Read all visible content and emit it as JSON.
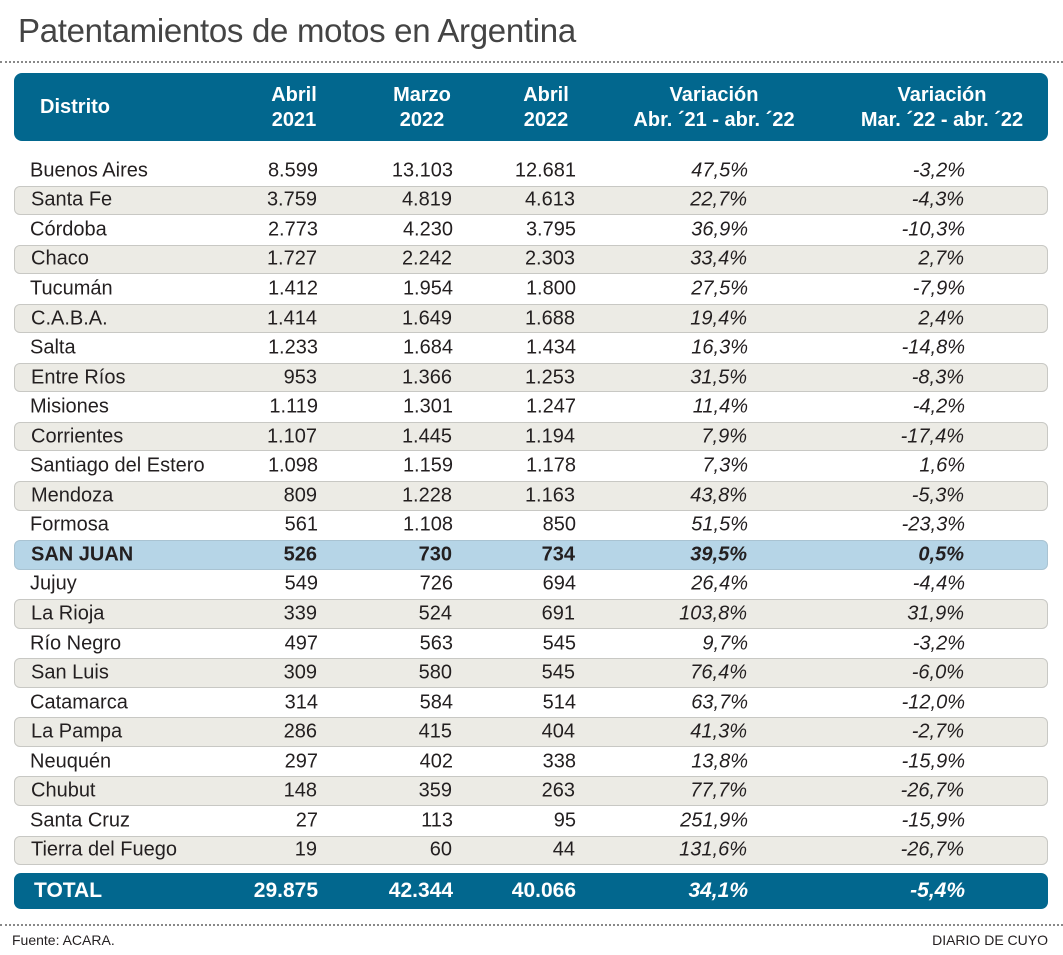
{
  "title": "Patentamientos de motos en Argentina",
  "header": {
    "distrito": "Distrito",
    "col1": [
      "Abril",
      "2021"
    ],
    "col2": [
      "Marzo",
      "2022"
    ],
    "col3": [
      "Abril",
      "2022"
    ],
    "col4": [
      "Variación",
      "Abr. ´21 - abr. ´22"
    ],
    "col5": [
      "Variación",
      "Mar. ´22 - abr. ´22"
    ]
  },
  "chart_data": {
    "type": "table",
    "title": "Patentamientos de motos en Argentina",
    "columns": [
      "Distrito",
      "Abril 2021",
      "Marzo 2022",
      "Abril 2022",
      "Variación Abr. ´21 - abr. ´22",
      "Variación Mar. ´22 - abr. ´22"
    ],
    "rows": [
      [
        "Buenos Aires",
        "8.599",
        "13.103",
        "12.681",
        "47,5%",
        "-3,2%"
      ],
      [
        "Santa Fe",
        "3.759",
        "4.819",
        "4.613",
        "22,7%",
        "-4,3%"
      ],
      [
        "Córdoba",
        "2.773",
        "4.230",
        "3.795",
        "36,9%",
        "-10,3%"
      ],
      [
        "Chaco",
        "1.727",
        "2.242",
        "2.303",
        "33,4%",
        "2,7%"
      ],
      [
        "Tucumán",
        "1.412",
        "1.954",
        "1.800",
        "27,5%",
        "-7,9%"
      ],
      [
        "C.A.B.A.",
        "1.414",
        "1.649",
        "1.688",
        "19,4%",
        "2,4%"
      ],
      [
        "Salta",
        "1.233",
        "1.684",
        "1.434",
        "16,3%",
        "-14,8%"
      ],
      [
        "Entre Ríos",
        "953",
        "1.366",
        "1.253",
        "31,5%",
        "-8,3%"
      ],
      [
        "Misiones",
        "1.119",
        "1.301",
        "1.247",
        "11,4%",
        "-4,2%"
      ],
      [
        "Corrientes",
        "1.107",
        "1.445",
        "1.194",
        "7,9%",
        "-17,4%"
      ],
      [
        "Santiago del Estero",
        "1.098",
        "1.159",
        "1.178",
        "7,3%",
        "1,6%"
      ],
      [
        "Mendoza",
        "809",
        "1.228",
        "1.163",
        "43,8%",
        "-5,3%"
      ],
      [
        "Formosa",
        "561",
        "1.108",
        "850",
        "51,5%",
        "-23,3%"
      ],
      [
        "SAN JUAN",
        "526",
        "730",
        "734",
        "39,5%",
        "0,5%"
      ],
      [
        "Jujuy",
        "549",
        "726",
        "694",
        "26,4%",
        "-4,4%"
      ],
      [
        "La Rioja",
        "339",
        "524",
        "691",
        "103,8%",
        "31,9%"
      ],
      [
        "Río Negro",
        "497",
        "563",
        "545",
        "9,7%",
        "-3,2%"
      ],
      [
        "San Luis",
        "309",
        "580",
        "545",
        "76,4%",
        "-6,0%"
      ],
      [
        "Catamarca",
        "314",
        "584",
        "514",
        "63,7%",
        "-12,0%"
      ],
      [
        "La Pampa",
        "286",
        "415",
        "404",
        "41,3%",
        "-2,7%"
      ],
      [
        "Neuquén",
        "297",
        "402",
        "338",
        "13,8%",
        "-15,9%"
      ],
      [
        "Chubut",
        "148",
        "359",
        "263",
        "77,7%",
        "-26,7%"
      ],
      [
        "Santa Cruz",
        "27",
        "113",
        "95",
        "251,9%",
        "-15,9%"
      ],
      [
        "Tierra del Fuego",
        "19",
        "60",
        "44",
        "131,6%",
        "-26,7%"
      ]
    ],
    "highlight_row": "SAN JUAN",
    "total": [
      "TOTAL",
      "29.875",
      "42.344",
      "40.066",
      "34,1%",
      "-5,4%"
    ]
  },
  "footer": {
    "source": "Fuente: ACARA.",
    "credit": "DIARIO DE CUYO"
  },
  "colors": {
    "header": "#02678e",
    "alt_row": "#ecebe5",
    "highlight": "#b6d5e7"
  }
}
